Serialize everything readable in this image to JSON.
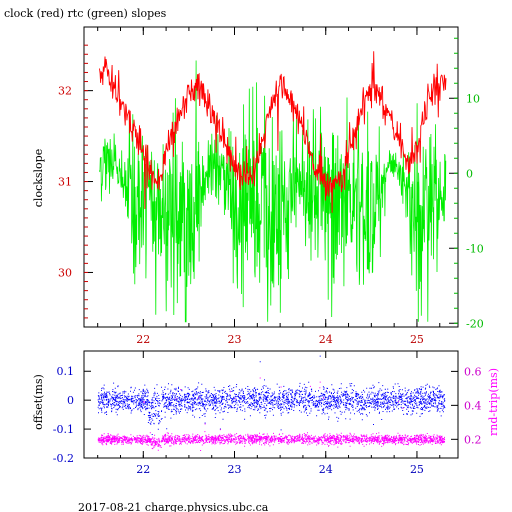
{
  "title": "clock (red) rtc (green) slopes",
  "footer": "2017-08-21 charge.physics.ubc.ca",
  "colors": {
    "clock": "#ff0000",
    "rtc": "#00ee00",
    "offset": "#0000ff",
    "rndtrip": "#ff00ff",
    "axis": "#000000"
  },
  "chart_data": [
    {
      "type": "line",
      "title": "clock (red) rtc (green) slopes",
      "xlabel": "",
      "xlim": [
        21.35,
        25.45
      ],
      "x_ticks": [
        22,
        23,
        24,
        25
      ],
      "ylabel": "clockslope",
      "ylim": [
        29.4,
        32.7
      ],
      "y_ticks": [
        30,
        31,
        32
      ],
      "y2lim": [
        -20.5,
        19.5
      ],
      "y2_ticks": [
        -20,
        -10,
        0,
        10
      ],
      "series": [
        {
          "axis": "left",
          "color": "#ff0000",
          "x": [
            21.5,
            21.6,
            21.7,
            21.8,
            21.9,
            22.0,
            22.1,
            22.2,
            22.3,
            22.4,
            22.5,
            22.6,
            22.7,
            22.8,
            22.9,
            23.0,
            23.1,
            23.2,
            23.3,
            23.4,
            23.5,
            23.6,
            23.7,
            23.8,
            23.9,
            24.0,
            24.1,
            24.2,
            24.3,
            24.4,
            24.5,
            24.6,
            24.7,
            24.8,
            24.9,
            25.0,
            25.1,
            25.2,
            25.3
          ],
          "values": [
            32.15,
            32.2,
            32.0,
            31.75,
            31.6,
            31.3,
            31.05,
            31.1,
            31.45,
            31.75,
            32.0,
            32.05,
            31.9,
            31.65,
            31.4,
            31.15,
            31.05,
            31.1,
            31.45,
            31.8,
            32.05,
            31.95,
            31.7,
            31.4,
            31.1,
            31.0,
            31.0,
            31.1,
            31.45,
            31.8,
            32.05,
            31.95,
            31.7,
            31.45,
            31.2,
            31.4,
            31.8,
            32.05,
            32.1
          ]
        },
        {
          "axis": "right",
          "color": "#00ee00",
          "x": [
            21.5,
            21.6,
            21.7,
            21.8,
            21.9,
            22.0,
            22.1,
            22.2,
            22.3,
            22.4,
            22.5,
            22.6,
            22.7,
            22.8,
            22.9,
            23.0,
            23.1,
            23.2,
            23.3,
            23.4,
            23.5,
            23.6,
            23.7,
            23.8,
            23.9,
            24.0,
            24.1,
            24.2,
            24.3,
            24.4,
            24.5,
            24.6,
            24.7,
            24.8,
            24.9,
            25.0,
            25.1,
            25.2,
            25.3
          ],
          "values": [
            1.0,
            1.5,
            1.0,
            -2.0,
            -4.0,
            -3.0,
            -4.5,
            -4.0,
            -5.0,
            -6.5,
            -7.0,
            -4.5,
            0.5,
            1.5,
            -1.5,
            -5.0,
            -6.0,
            -5.5,
            -4.5,
            -6.5,
            -6.0,
            -3.5,
            -2.0,
            -3.0,
            -5.0,
            -5.5,
            -4.5,
            -4.0,
            -3.5,
            -4.5,
            -4.0,
            -2.0,
            0.5,
            0.5,
            -2.5,
            -6.0,
            -5.5,
            -3.0,
            -2.5
          ]
        }
      ]
    },
    {
      "type": "scatter",
      "xlabel": "",
      "xlim": [
        21.35,
        25.45
      ],
      "x_ticks": [
        22,
        23,
        24,
        25
      ],
      "ylabel": "offset(ms)",
      "ylim": [
        -0.2,
        0.17
      ],
      "y_ticks": [
        -0.2,
        -0.1,
        0,
        0.1
      ],
      "y_tick_labels": [
        "-0.2",
        "-0.1",
        "0",
        "0.1"
      ],
      "y2label": "rnd-trip(ms)",
      "y2lim": [
        0.09,
        0.72
      ],
      "y2_ticks": [
        0.2,
        0.4,
        0.6
      ],
      "y2_tick_labels": [
        "0.2",
        "0.4",
        "0.6"
      ],
      "series": [
        {
          "axis": "left",
          "color": "#0000ff",
          "x_range": [
            21.5,
            25.3
          ],
          "center": 0.0,
          "spread": 0.04
        },
        {
          "axis": "right",
          "color": "#ff00ff",
          "x_range": [
            21.5,
            25.3
          ],
          "center": 0.2,
          "spread": 0.025
        }
      ]
    }
  ]
}
